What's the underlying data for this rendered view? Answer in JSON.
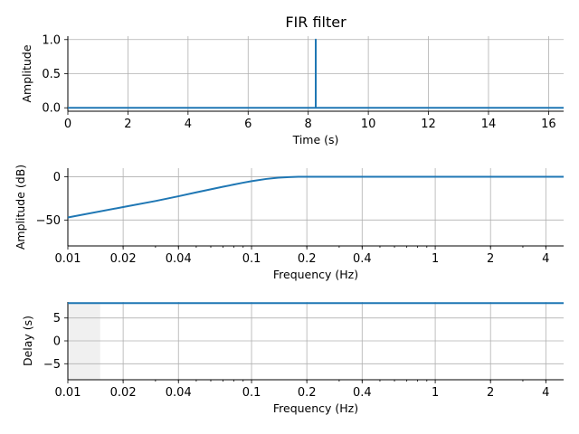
{
  "colors": {
    "line": "#1f77b4",
    "grid": "#b0b0b0",
    "shade": "#f0f0f0"
  },
  "chart_data": [
    {
      "type": "line",
      "title": "FIR filter",
      "xlabel": "Time (s)",
      "ylabel": "Amplitude",
      "xlim": [
        0,
        16.5
      ],
      "ylim": [
        -0.05,
        1.05
      ],
      "xticks": [
        0,
        2,
        4,
        6,
        8,
        10,
        12,
        14,
        16
      ],
      "xtick_labels": [
        "0",
        "2",
        "4",
        "6",
        "8",
        "10",
        "12",
        "14",
        "16"
      ],
      "yticks": [
        0.0,
        0.5,
        1.0
      ],
      "ytick_labels": [
        "0.0",
        "0.5",
        "1.0"
      ],
      "grid": true,
      "series": [
        {
          "x": [
            0,
            8.25,
            8.25,
            8.25,
            8.25,
            16.5
          ],
          "y": [
            0,
            0,
            1,
            1,
            0,
            0
          ]
        }
      ]
    },
    {
      "type": "line",
      "xlabel": "Frequency (Hz)",
      "ylabel": "Amplitude (dB)",
      "xscale": "log",
      "xlim": [
        0.01,
        5
      ],
      "ylim": [
        -80,
        10
      ],
      "xticks": [
        0.01,
        0.02,
        0.04,
        0.1,
        0.2,
        0.4,
        1,
        2,
        4
      ],
      "xtick_labels": [
        "0.01",
        "0.02",
        "0.04",
        "0.1",
        "0.2",
        "0.4",
        "1",
        "2",
        "4"
      ],
      "yticks": [
        0,
        -50
      ],
      "ytick_labels": [
        "0",
        "−50"
      ],
      "grid": true,
      "series": [
        {
          "x": [
            0.01,
            0.02,
            0.03,
            0.04,
            0.05,
            0.06,
            0.07,
            0.08,
            0.09,
            0.1,
            0.12,
            0.14,
            0.16,
            0.18,
            0.2,
            0.3,
            0.5,
            1,
            2,
            5
          ],
          "y": [
            -47,
            -35,
            -28,
            -22.5,
            -18,
            -14.5,
            -11.5,
            -9,
            -6.8,
            -5,
            -2.5,
            -1.0,
            -0.3,
            0,
            0,
            0,
            0,
            0,
            0,
            0
          ]
        }
      ]
    },
    {
      "type": "line",
      "xlabel": "Frequency (Hz)",
      "ylabel": "Delay (s)",
      "xscale": "log",
      "xlim": [
        0.01,
        5
      ],
      "ylim": [
        -8.5,
        8.5
      ],
      "xticks": [
        0.01,
        0.02,
        0.04,
        0.1,
        0.2,
        0.4,
        1,
        2,
        4
      ],
      "xtick_labels": [
        "0.01",
        "0.02",
        "0.04",
        "0.1",
        "0.2",
        "0.4",
        "1",
        "2",
        "4"
      ],
      "yticks": [
        5,
        0,
        -5
      ],
      "ytick_labels": [
        "5",
        "0",
        "−5"
      ],
      "grid": true,
      "shaded_region_x": [
        0.01,
        0.015
      ],
      "series": [
        {
          "x": [
            0.01,
            5
          ],
          "y": [
            8.25,
            8.25
          ]
        }
      ]
    }
  ]
}
